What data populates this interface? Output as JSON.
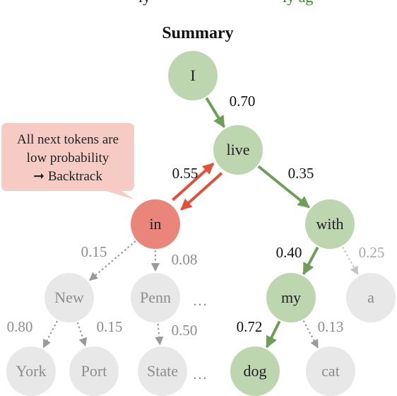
{
  "top_caption": {
    "left": "ly",
    "right": "ly ag"
  },
  "diagram": {
    "title": "Summary",
    "callout": {
      "line1": "All next tokens are",
      "line2": "low probability",
      "line3": "➞ Backtrack"
    },
    "nodes": [
      {
        "id": "I",
        "label": "I",
        "state": "chosen"
      },
      {
        "id": "live",
        "label": "live",
        "state": "chosen"
      },
      {
        "id": "in",
        "label": "in",
        "state": "backtracked"
      },
      {
        "id": "with",
        "label": "with",
        "state": "chosen"
      },
      {
        "id": "new",
        "label": "New",
        "state": "unexplored"
      },
      {
        "id": "penn",
        "label": "Penn",
        "state": "unexplored"
      },
      {
        "id": "my",
        "label": "my",
        "state": "chosen"
      },
      {
        "id": "a",
        "label": "a",
        "state": "unexplored"
      },
      {
        "id": "york",
        "label": "York",
        "state": "unexplored"
      },
      {
        "id": "port",
        "label": "Port",
        "state": "unexplored"
      },
      {
        "id": "state",
        "label": "State",
        "state": "unexplored"
      },
      {
        "id": "dog",
        "label": "dog",
        "state": "chosen"
      },
      {
        "id": "cat",
        "label": "cat",
        "state": "unexplored"
      }
    ],
    "edges": [
      {
        "from": "I",
        "to": "live",
        "prob": "0.70",
        "style": "chosen"
      },
      {
        "from": "live",
        "to": "in",
        "prob": "0.55",
        "style": "backtrack"
      },
      {
        "from": "live",
        "to": "with",
        "prob": "0.35",
        "style": "chosen"
      },
      {
        "from": "in",
        "to": "new",
        "prob": "0.15",
        "style": "dotted"
      },
      {
        "from": "in",
        "to": "penn",
        "prob": "0.08",
        "style": "dotted"
      },
      {
        "from": "with",
        "to": "my",
        "prob": "0.40",
        "style": "chosen"
      },
      {
        "from": "with",
        "to": "a",
        "prob": "0.25",
        "style": "dotted"
      },
      {
        "from": "new",
        "to": "york",
        "prob": "0.80",
        "style": "dotted"
      },
      {
        "from": "new",
        "to": "port",
        "prob": "0.15",
        "style": "dotted"
      },
      {
        "from": "penn",
        "to": "state",
        "prob": "0.50",
        "style": "dotted"
      },
      {
        "from": "my",
        "to": "dog",
        "prob": "0.72",
        "style": "chosen"
      },
      {
        "from": "my",
        "to": "cat",
        "prob": "0.13",
        "style": "dotted"
      }
    ],
    "ellipses": [
      "…",
      "…"
    ]
  },
  "colors": {
    "chosen_fill": "#bdd6b0",
    "chosen_edge": "#6f9e5b",
    "backtrack_fill": "#e9857a",
    "backtrack_edge": "#e0503a",
    "unexplored_fill": "#e8e8e8",
    "unexplored_text": "#8c8c8c",
    "dotted_edge": "#9a9a9a",
    "callout_fill": "#f6cbc4",
    "caption_green": "#3a8a2e"
  }
}
